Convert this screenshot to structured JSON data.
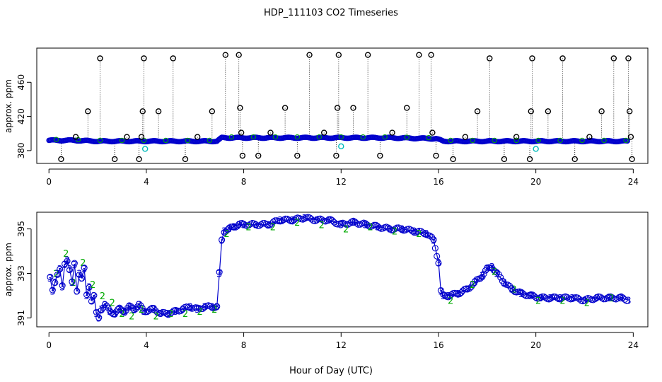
{
  "title": "HDP_111103  CO2 Timeseries",
  "xlabel": "Hour of Day (UTC)",
  "colors": {
    "outlier": "#000000",
    "flag_blue": "#0000cc",
    "flag_cyan": "#00bbbb",
    "flag_green": "#00aa00",
    "axis": "#000000"
  },
  "chart_data": [
    {
      "type": "scatter",
      "title": "",
      "xlabel": "",
      "ylabel": "approx. ppm",
      "xlim": [
        -0.5,
        24.6
      ],
      "ylim": [
        365,
        500
      ],
      "xticks": [
        0,
        4,
        8,
        12,
        16,
        20,
        24
      ],
      "yticks": [
        380,
        420,
        460
      ],
      "baseline_series": {
        "name": "baseline",
        "x": [
          0,
          1,
          2,
          3,
          4,
          5,
          6,
          6.9,
          7.1,
          8,
          10,
          12,
          14,
          15.9,
          16.2,
          18,
          20,
          22,
          23.8
        ],
        "y": [
          392,
          392,
          391,
          391,
          391,
          391,
          391,
          391,
          395,
          395,
          395,
          395,
          395,
          394,
          391,
          391,
          391,
          391,
          391
        ]
      },
      "outliers": {
        "name": "outliers",
        "x": [
          0.5,
          1.1,
          1.6,
          2.1,
          2.7,
          3.2,
          3.7,
          3.8,
          3.85,
          3.9,
          4.5,
          5.1,
          5.6,
          6.1,
          6.7,
          7.25,
          7.8,
          7.85,
          7.9,
          7.95,
          8.6,
          9.1,
          9.7,
          10.2,
          10.7,
          11.3,
          11.8,
          11.85,
          11.9,
          12.5,
          13.1,
          13.6,
          14.1,
          14.7,
          15.2,
          15.7,
          15.75,
          15.9,
          16.6,
          17.1,
          17.6,
          18.1,
          18.7,
          19.2,
          19.75,
          19.8,
          19.85,
          20.5,
          21.1,
          21.6,
          22.2,
          22.7,
          23.2,
          23.8,
          23.85,
          23.9,
          23.95
        ],
        "y": [
          370,
          396,
          426,
          488,
          370,
          396,
          370,
          396,
          426,
          488,
          426,
          488,
          370,
          396,
          426,
          492,
          492,
          430,
          401,
          374,
          374,
          401,
          430,
          374,
          492,
          401,
          374,
          430,
          492,
          430,
          492,
          374,
          401,
          430,
          492,
          492,
          401,
          374,
          370,
          396,
          426,
          488,
          370,
          396,
          370,
          426,
          488,
          426,
          488,
          370,
          396,
          426,
          488,
          488,
          426,
          396,
          370
        ],
        "drop_lines": true
      },
      "flagged_cyan": {
        "name": "flagged",
        "x": [
          3.95,
          12.0,
          20.0
        ],
        "y": [
          382,
          385,
          382
        ]
      }
    },
    {
      "type": "scatter",
      "title": "",
      "xlabel": "Hour of Day (UTC)",
      "ylabel": "approx. ppm",
      "xlim": [
        -0.5,
        24.6
      ],
      "ylim": [
        390.6,
        395.75
      ],
      "xticks": [
        0,
        4,
        8,
        12,
        16,
        20,
        24
      ],
      "yticks": [
        391,
        393,
        395
      ],
      "series": [
        {
          "name": "3",
          "marker": "3",
          "x": [
            0.05,
            0.15,
            0.25,
            0.35,
            0.45,
            0.55,
            0.65,
            0.75,
            0.85,
            0.95,
            1.05,
            1.15,
            1.25,
            1.35,
            1.45,
            1.55,
            1.65,
            1.75,
            1.85,
            1.95,
            2.05,
            2.15,
            2.3,
            2.5,
            2.7,
            2.9,
            3.1,
            3.3,
            3.5,
            3.7,
            3.9,
            4.3,
            4.6,
            4.9,
            5.2,
            5.5,
            5.8,
            6.1,
            6.4,
            6.7,
            6.9,
            7.0,
            7.1,
            7.2,
            7.4,
            7.6,
            7.8,
            8.0,
            8.5,
            9.0,
            9.5,
            10.0,
            10.5,
            11.0,
            11.5,
            12.0,
            12.5,
            13.0,
            13.5,
            14.0,
            14.5,
            15.0,
            15.5,
            15.8,
            16.0,
            16.1,
            16.2,
            16.4,
            16.8,
            17.2,
            17.5,
            17.8,
            18.0,
            18.2,
            18.4,
            18.7,
            19.0,
            19.4,
            19.8,
            20.2,
            20.6,
            21.0,
            21.5,
            22.0,
            22.5,
            23.0,
            23.5,
            23.8
          ],
          "y": [
            392.8,
            392.2,
            392.6,
            393.0,
            393.2,
            392.4,
            393.4,
            393.6,
            393.2,
            392.6,
            393.4,
            392.2,
            393.0,
            392.8,
            393.2,
            392.0,
            392.4,
            391.8,
            392.0,
            391.2,
            391.0,
            391.4,
            391.6,
            391.3,
            391.2,
            391.4,
            391.3,
            391.5,
            391.4,
            391.6,
            391.3,
            391.4,
            391.2,
            391.2,
            391.3,
            391.4,
            391.5,
            391.4,
            391.5,
            391.5,
            391.5,
            393.0,
            394.5,
            394.9,
            395.0,
            395.1,
            395.2,
            395.2,
            395.2,
            395.2,
            395.4,
            395.4,
            395.5,
            395.4,
            395.4,
            395.2,
            395.3,
            395.2,
            395.1,
            395.0,
            395.0,
            394.9,
            394.8,
            394.5,
            393.5,
            392.2,
            392.0,
            392.0,
            392.1,
            392.3,
            392.6,
            392.9,
            393.2,
            393.3,
            393.0,
            392.6,
            392.3,
            392.1,
            392.0,
            391.9,
            391.9,
            391.9,
            391.9,
            391.8,
            391.9,
            391.9,
            391.9,
            391.8
          ]
        },
        {
          "name": "2",
          "marker": "2",
          "x": [
            0.3,
            0.7,
            1.0,
            1.4,
            1.8,
            2.2,
            2.6,
            3.0,
            3.4,
            3.8,
            4.4,
            5.0,
            5.6,
            6.2,
            6.8,
            7.3,
            8.2,
            9.2,
            10.2,
            11.2,
            12.2,
            13.2,
            14.2,
            15.2,
            16.5,
            17.4,
            18.3,
            19.1,
            20.1,
            21.1,
            22.1,
            23.1
          ],
          "y": [
            393.0,
            393.9,
            392.6,
            393.5,
            392.5,
            392.0,
            391.7,
            391.2,
            391.1,
            391.4,
            391.1,
            391.2,
            391.2,
            391.3,
            391.4,
            394.8,
            395.1,
            395.1,
            395.3,
            395.2,
            395.0,
            395.1,
            394.9,
            394.8,
            391.8,
            392.5,
            393.1,
            392.3,
            391.8,
            391.8,
            391.7,
            391.9
          ]
        }
      ]
    }
  ]
}
